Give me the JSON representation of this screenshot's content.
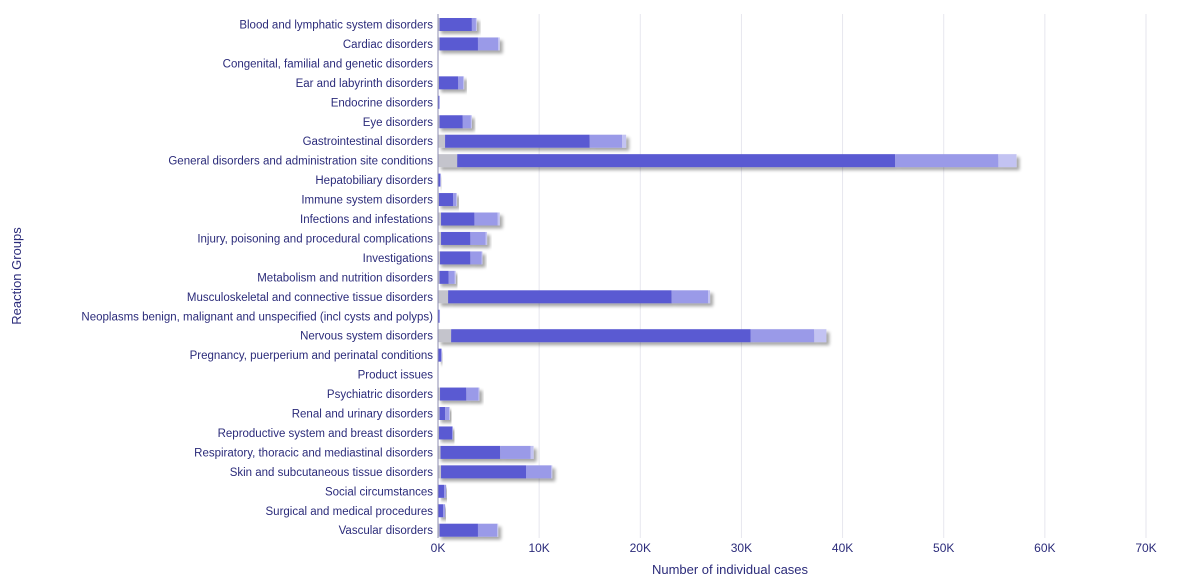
{
  "chart_data": {
    "type": "bar",
    "orientation": "horizontal",
    "stacked": true,
    "xlabel": "Number of individual cases",
    "ylabel": "Reaction Groups",
    "xlim": [
      0,
      70000
    ],
    "xticks": [
      0,
      10000,
      20000,
      30000,
      40000,
      50000,
      60000,
      70000
    ],
    "xtick_labels": [
      "0K",
      "10K",
      "20K",
      "30K",
      "40K",
      "50K",
      "60K",
      "70K"
    ],
    "grid": true,
    "categories": [
      "Blood and lymphatic system disorders",
      "Cardiac disorders",
      "Congenital, familial and genetic disorders",
      "Ear and labyrinth disorders",
      "Endocrine disorders",
      "Eye disorders",
      "Gastrointestinal disorders",
      "General disorders and administration site conditions",
      "Hepatobiliary disorders",
      "Immune system disorders",
      "Infections and infestations",
      "Injury, poisoning and procedural complications",
      "Investigations",
      "Metabolism and nutrition disorders",
      "Musculoskeletal and connective tissue disorders",
      "Neoplasms benign, malignant and unspecified (incl cysts and polyps)",
      "Nervous system disorders",
      "Pregnancy, puerperium and perinatal conditions",
      "Product issues",
      "Psychiatric disorders",
      "Renal and urinary disorders",
      "Reproductive system and breast disorders",
      "Respiratory, thoracic and mediastinal disorders",
      "Skin and subcutaneous tissue disorders",
      "Social circumstances",
      "Surgical and medical procedures",
      "Vascular disorders"
    ],
    "series": [
      {
        "color": "#c4c4cc",
        "values": [
          150,
          150,
          0,
          100,
          20,
          150,
          700,
          1900,
          30,
          100,
          300,
          300,
          200,
          150,
          1000,
          20,
          1300,
          20,
          0,
          200,
          150,
          100,
          250,
          300,
          50,
          50,
          150
        ]
      },
      {
        "color": "#5a5ad2",
        "values": [
          3200,
          3800,
          0,
          1900,
          70,
          2300,
          14300,
          43300,
          170,
          1400,
          3300,
          2900,
          3000,
          900,
          22100,
          100,
          29600,
          280,
          0,
          2600,
          550,
          1300,
          5900,
          8400,
          550,
          450,
          3800
        ]
      },
      {
        "color": "#9a9ae8",
        "values": [
          400,
          2000,
          0,
          500,
          10,
          800,
          3200,
          10200,
          30,
          300,
          2300,
          1500,
          1100,
          600,
          3600,
          20,
          6300,
          50,
          0,
          1200,
          400,
          50,
          3000,
          2500,
          200,
          200,
          1900
        ]
      },
      {
        "color": "#c3c3f2",
        "values": [
          50,
          150,
          0,
          50,
          0,
          100,
          400,
          1800,
          0,
          50,
          200,
          150,
          100,
          100,
          200,
          0,
          1200,
          0,
          0,
          100,
          50,
          0,
          300,
          100,
          0,
          0,
          100
        ]
      }
    ]
  }
}
